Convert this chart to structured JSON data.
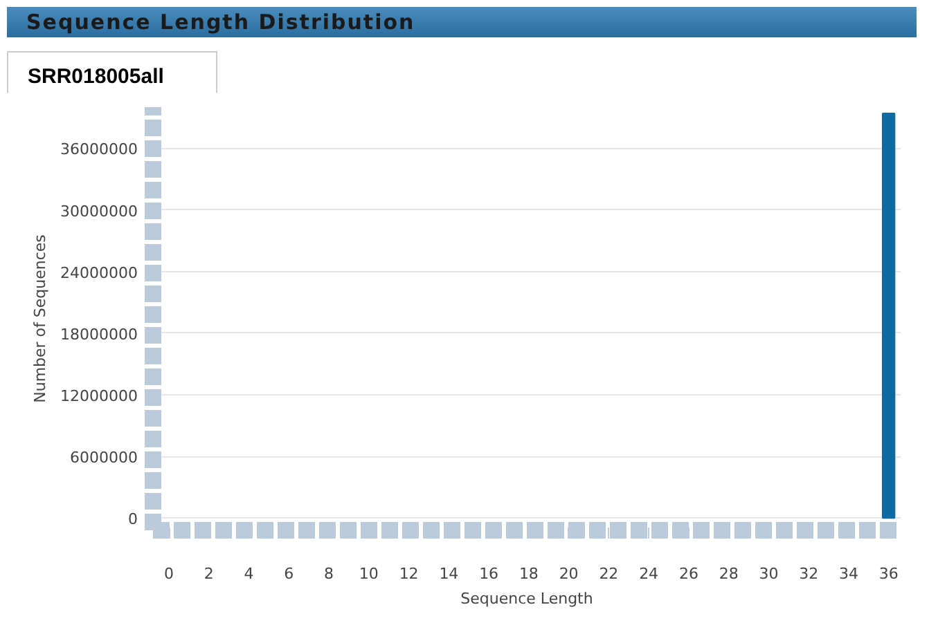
{
  "chart_data": {
    "type": "bar",
    "title": "Sequence Length Distribution",
    "subtitle": "SRR018005all",
    "xlabel": "Sequence Length",
    "ylabel": "Number of Sequences",
    "x": [
      36
    ],
    "values": [
      39400000
    ],
    "color": "#0e6aa0",
    "xlim": [
      -0.8,
      36.6
    ],
    "xticks": [
      0,
      2,
      4,
      6,
      8,
      10,
      12,
      14,
      16,
      18,
      20,
      22,
      24,
      26,
      28,
      30,
      32,
      34,
      36
    ],
    "ylim": [
      -1200000,
      40000000
    ],
    "yticks": [
      0,
      6000000,
      12000000,
      18000000,
      24000000,
      30000000,
      36000000
    ],
    "grid": "y"
  }
}
